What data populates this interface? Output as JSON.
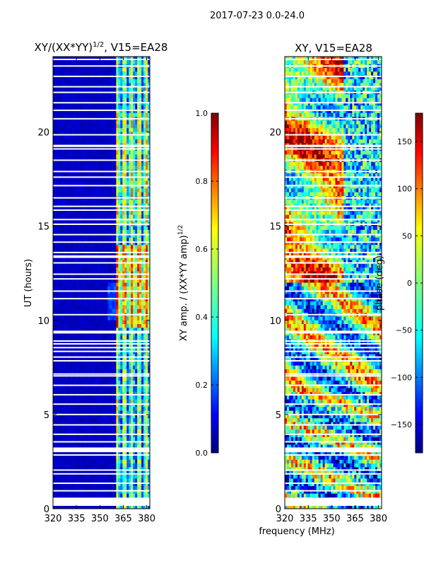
{
  "figure_title": "2017-07-23 0.0-24.0",
  "chart_data": [
    {
      "type": "heatmap",
      "title_main": "XY/(XX*YY)",
      "title_sup": "1/2",
      "title_rest": ", V15=EA28",
      "xlabel": "",
      "ylabel": "UT (hours)",
      "xlim": [
        320,
        382
      ],
      "ylim": [
        0,
        24
      ],
      "xticks": [
        320,
        335,
        350,
        365,
        380
      ],
      "yticks": [
        0,
        5,
        10,
        15,
        20
      ],
      "quantity": "XY amplitude normalized",
      "colorbar": {
        "label_main": "XY amp. / (XX*YY amp)",
        "label_sup": "1/2",
        "range": [
          0.0,
          1.0
        ],
        "ticks": [
          "0.0",
          "0.2",
          "0.4",
          "0.6",
          "0.8",
          "1.0"
        ],
        "tick_values": [
          0.0,
          0.2,
          0.4,
          0.6,
          0.8,
          1.0
        ],
        "colormap": "jet"
      }
    },
    {
      "type": "heatmap",
      "title": "XY, V15=EA28",
      "xlabel": "frequency (MHz)",
      "ylabel": "",
      "xlim": [
        320,
        382
      ],
      "ylim": [
        0,
        24
      ],
      "xticks": [
        320,
        335,
        350,
        365,
        380
      ],
      "yticks": [
        0,
        5,
        10,
        15,
        20
      ],
      "quantity": "XY phase",
      "colorbar": {
        "label": "phase (deg)",
        "range": [
          -180,
          180
        ],
        "ticks": [
          "150",
          "100",
          "50",
          "0",
          "−50",
          "−100",
          "−150"
        ],
        "tick_values": [
          150,
          100,
          50,
          0,
          -50,
          -100,
          -150
        ],
        "colormap": "jet"
      }
    }
  ],
  "flagged_hours": [
    0.35,
    0.55,
    0.95,
    1.35,
    1.85,
    2.05,
    2.85,
    3.05,
    3.55,
    3.95,
    4.45,
    5.0,
    5.55,
    6.05,
    6.55,
    7.05,
    7.15,
    7.85,
    8.05,
    8.35,
    8.55,
    8.75,
    8.9,
    9.35,
    10.3,
    11.15,
    11.55,
    12.2,
    12.45,
    13.05,
    13.35,
    13.6,
    14.15,
    14.55,
    15.1,
    15.35,
    15.85,
    16.05,
    16.5,
    17.15,
    17.6,
    17.9,
    18.5,
    19.1,
    19.25,
    19.85,
    20.7,
    21.15,
    21.55,
    22.1,
    22.4,
    22.95,
    23.5,
    23.85
  ],
  "flagged_bands": [
    [
      0.15,
      0.55
    ],
    [
      3.0,
      3.25
    ],
    [
      9.3,
      9.45
    ],
    [
      13.32,
      13.45
    ],
    [
      19.2,
      19.32
    ]
  ],
  "colors": {
    "jet": [
      "#00007f",
      "#0000ff",
      "#0080ff",
      "#00ffff",
      "#80ff80",
      "#ffff00",
      "#ff8000",
      "#ff0000",
      "#7f0000"
    ],
    "gap": "#ffffff",
    "axis": "#000000"
  }
}
